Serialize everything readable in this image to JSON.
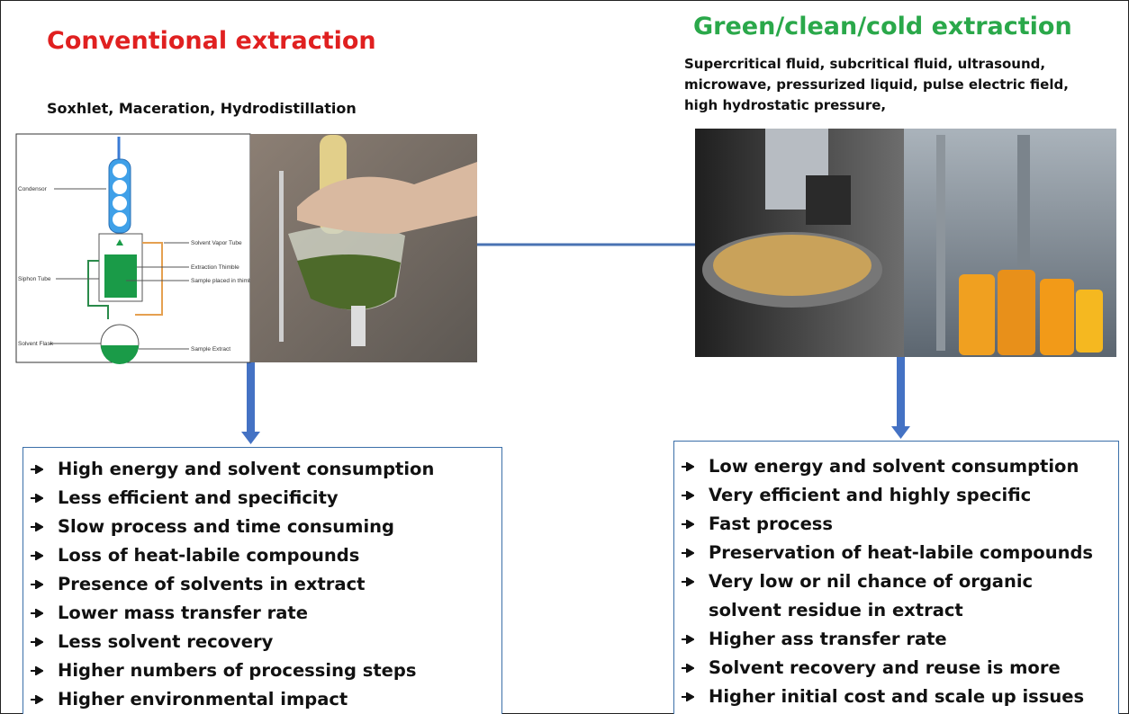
{
  "left": {
    "title": "Conventional extraction",
    "methods": "Soxhlet, Maceration, Hydrodistillation",
    "diagram_labels": [
      "Condensor",
      "Solvent Vapor Tube",
      "Extraction Thimble",
      "Sample placed in thimble",
      "Siphon Tube",
      "Solvent Flask",
      "Sample Extract"
    ],
    "points": [
      "High energy and solvent consumption",
      "Less efficient and specificity",
      "Slow process and time consuming",
      "Loss of heat-labile compounds",
      "Presence of solvents in extract",
      "Lower mass transfer rate",
      "Less solvent recovery",
      "Higher numbers of processing steps",
      "Higher environmental impact"
    ]
  },
  "right": {
    "title": "Green/clean/cold extraction",
    "methods": [
      "Supercritical fluid, subcritical fluid, ultrasound,",
      "microwave, pressurized liquid, pulse electric field,",
      "high hydrostatic pressure,"
    ],
    "points": [
      "Low energy and solvent consumption",
      "Very efficient and highly specific",
      "Fast process",
      "Preservation of heat-labile compounds",
      "Very low or nil chance of organic solvent residue in extract",
      "Higher ass transfer rate",
      "Solvent recovery and reuse is more",
      "Higher initial cost and scale up issues"
    ]
  }
}
